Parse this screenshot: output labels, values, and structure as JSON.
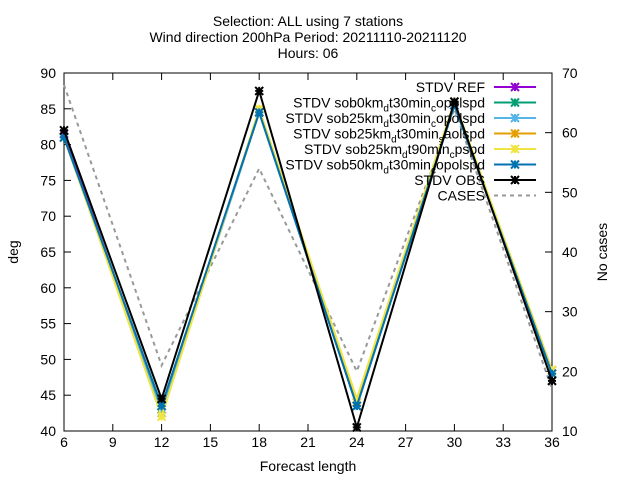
{
  "chart_data": {
    "type": "line",
    "title_lines": [
      "Selection: ALL using     7 stations",
      "Wind direction 200hPa   Period: 20211110-20211120",
      "Hours: 06"
    ],
    "xlabel": "Forecast length",
    "ylabel": "deg",
    "y2label": "No cases",
    "xlim": [
      6,
      36
    ],
    "ylim": [
      40,
      90
    ],
    "y2lim": [
      10,
      70
    ],
    "xticks": [
      "6",
      "9",
      "12",
      "15",
      "18",
      "21",
      "24",
      "27",
      "30",
      "33",
      "36"
    ],
    "yticks": [
      "40",
      "45",
      "50",
      "55",
      "60",
      "65",
      "70",
      "75",
      "80",
      "85",
      "90"
    ],
    "y2ticks": [
      "10",
      "20",
      "30",
      "40",
      "50",
      "60",
      "70"
    ],
    "grid": false,
    "legend_position": "top-right",
    "x": [
      6,
      12,
      18,
      24,
      30,
      36
    ],
    "series": [
      {
        "name": "STDV REF",
        "label_parts": [
          [
            "STDV REF",
            ""
          ]
        ],
        "color": "#9400d3",
        "marker": "x",
        "values": [
          81.5,
          43.0,
          84.5,
          43.5,
          85.5,
          48.5
        ]
      },
      {
        "name": "STDV sob0km_d t30min_c opolspd",
        "label_parts": [
          [
            "STDV sob0km",
            ""
          ],
          [
            "d",
            "sub"
          ],
          [
            "t30min",
            ""
          ],
          [
            "c",
            "sub"
          ],
          [
            "opolspd",
            ""
          ]
        ],
        "color": "#009e73",
        "marker": "x",
        "values": [
          81.0,
          43.0,
          84.5,
          43.5,
          85.5,
          48.0
        ]
      },
      {
        "name": "STDV sob25km_d t30min_c opolspd",
        "label_parts": [
          [
            "STDV sob25km",
            ""
          ],
          [
            "d",
            "sub"
          ],
          [
            "t30min",
            ""
          ],
          [
            "c",
            "sub"
          ],
          [
            "opolspd",
            ""
          ]
        ],
        "color": "#56b4e9",
        "marker": "x",
        "values": [
          81.0,
          42.5,
          84.5,
          43.5,
          85.5,
          48.0
        ]
      },
      {
        "name": "STDV sob25km_d t30min_s aolspd",
        "label_parts": [
          [
            "STDV sob25km",
            ""
          ],
          [
            "d",
            "sub"
          ],
          [
            "t30min",
            ""
          ],
          [
            "s",
            "sub"
          ],
          [
            "aolspd",
            ""
          ]
        ],
        "color": "#e69f00",
        "marker": "x",
        "values": [
          81.0,
          43.5,
          84.5,
          44.0,
          85.5,
          48.0
        ]
      },
      {
        "name": "STDV sob25km_d t90min_c pspd",
        "label_parts": [
          [
            "STDV sob25km",
            ""
          ],
          [
            "d",
            "sub"
          ],
          [
            "t90min",
            ""
          ],
          [
            "c",
            "sub"
          ],
          [
            "pspd",
            ""
          ]
        ],
        "color": "#f0e442",
        "marker": "x",
        "values": [
          81.0,
          42.0,
          85.0,
          44.5,
          86.0,
          48.5
        ]
      },
      {
        "name": "STDV sob50km_d t30min_c opolspd",
        "label_parts": [
          [
            "STDV sob50km",
            ""
          ],
          [
            "d",
            "sub"
          ],
          [
            "t30min",
            ""
          ],
          [
            "c",
            "sub"
          ],
          [
            "opolspd",
            ""
          ]
        ],
        "color": "#0072b2",
        "marker": "x",
        "values": [
          81.0,
          43.5,
          84.5,
          43.5,
          85.5,
          48.0
        ]
      },
      {
        "name": "STDV OBS",
        "label_parts": [
          [
            "STDV OBS",
            ""
          ]
        ],
        "color": "#000000",
        "marker": "x",
        "values": [
          82.0,
          44.5,
          87.5,
          40.5,
          86.0,
          47.0
        ]
      },
      {
        "name": "CASES",
        "label_parts": [
          [
            "CASES",
            ""
          ]
        ],
        "color": "#999999",
        "marker": "none",
        "dashed": true,
        "axis": "y2",
        "values": [
          68,
          21,
          54,
          20,
          64,
          17
        ]
      }
    ]
  }
}
